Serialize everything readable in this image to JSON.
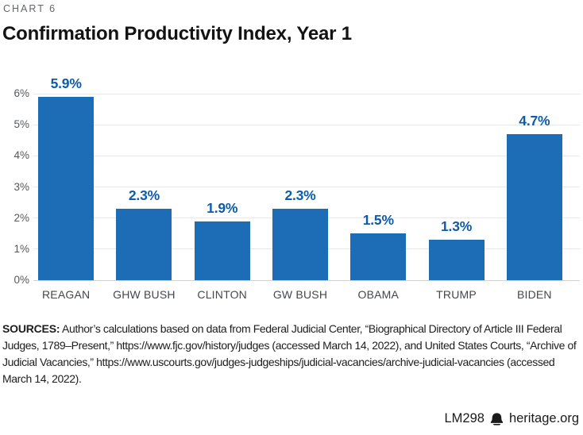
{
  "header": {
    "kicker": "CHART 6",
    "title": "Confirmation Productivity Index, Year 1"
  },
  "chart_data": {
    "type": "bar",
    "title": "Confirmation Productivity Index, Year 1",
    "categories": [
      "REAGAN",
      "GHW BUSH",
      "CLINTON",
      "GW BUSH",
      "OBAMA",
      "TRUMP",
      "BIDEN"
    ],
    "values": [
      5.9,
      2.3,
      1.9,
      2.3,
      1.5,
      1.3,
      4.7
    ],
    "value_labels": [
      "5.9%",
      "2.3%",
      "1.9%",
      "2.3%",
      "1.5%",
      "1.3%",
      "4.7%"
    ],
    "xlabel": "",
    "ylabel": "",
    "ylim": [
      0,
      6
    ],
    "y_ticks": [
      "0%",
      "1%",
      "2%",
      "3%",
      "4%",
      "5%",
      "6%"
    ],
    "grid": true,
    "legend": "none",
    "bar_color": "#1c6cb6",
    "value_label_color": "#0e5ca8"
  },
  "footer": {
    "sources_label": "SOURCES:",
    "sources_text": " Author’s calculations based on data from Federal Judicial Center, “Biographical Directory of Article III Federal Judges, 1789–Present,” https://www.fjc.gov/history/judges (accessed March 14, 2022), and United States Courts, “Archive of Judicial Vacancies,”  https://www.uscourts.gov/judges-judgeships/judicial-vacancies/archive-judicial-vacancies (accessed March 14, 2022).",
    "credit_code": "LM298",
    "credit_site": "heritage.org",
    "logo_icon": "liberty-bell-icon"
  }
}
